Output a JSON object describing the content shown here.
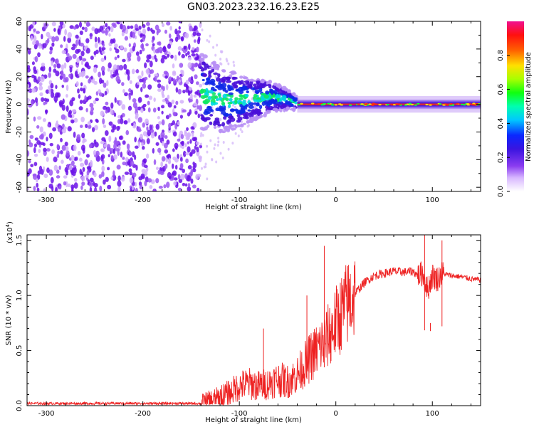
{
  "title": "GN03.2023.232.16.23.E25",
  "colors": {
    "snr_line": "#ee2222",
    "spectro_scatter": "#8a3cf0",
    "spectro_band_core": "#1a33c8",
    "spectro_band_hot": "#ff2a10"
  },
  "chart_data": [
    {
      "type": "heatmap",
      "xlabel": "Height of straight line (km)",
      "ylabel": "Frequency (Hz)",
      "xlim": [
        -320,
        150
      ],
      "ylim": [
        -63,
        60
      ],
      "xticks": [
        -300,
        -200,
        -100,
        0,
        100
      ],
      "yticks": [
        60,
        40,
        20,
        0,
        -20,
        -40,
        -60
      ],
      "x_tick_labels": [
        "-300",
        "-200",
        "-100",
        "0",
        "100"
      ],
      "y_tick_labels": [
        "60",
        "40",
        "20",
        "0",
        "-20",
        "-40",
        "-60"
      ],
      "colorbar": {
        "label": "Normalized spectral amplitude",
        "range": [
          0,
          1
        ],
        "ticks": [
          "0.0",
          "0.2",
          "0.4",
          "0.6",
          "0.8"
        ],
        "colormap": "rainbow (white-purple-blue-cyan-green-yellow-red-magenta)"
      },
      "regions": [
        {
          "x_range": [
            -320,
            -140
          ],
          "freq_range": [
            -63,
            60
          ],
          "amplitude": 0.05,
          "description_type": "broadband noise"
        },
        {
          "x_range": [
            -140,
            -40
          ],
          "freq_range": [
            -20,
            25
          ],
          "amplitude": 0.3,
          "description_type": "narrowing band"
        },
        {
          "x_range": [
            -40,
            150
          ],
          "freq_range": [
            -2,
            2
          ],
          "amplitude": 0.95,
          "description_type": "narrow line near 0 Hz"
        }
      ]
    },
    {
      "type": "line",
      "xlabel": "Height of straight line (km)",
      "ylabel": "SNR (10 * v/v)",
      "y_scale_label": "(x10",
      "y_scale_exp": "4",
      "xlim": [
        -320,
        150
      ],
      "ylim": [
        0,
        1.55
      ],
      "xticks": [
        -300,
        -200,
        -100,
        0,
        100
      ],
      "yticks": [
        0.0,
        0.5,
        1.0,
        1.5
      ],
      "x_tick_labels": [
        "-300",
        "-200",
        "-100",
        "0",
        "100"
      ],
      "y_tick_labels": [
        "0.0",
        "0.5",
        "1.0",
        "1.5"
      ],
      "series": [
        {
          "x": [
            -320,
            -200,
            -140,
            -125,
            -110,
            -100,
            -90,
            -80,
            -70,
            -60,
            -50,
            -40,
            -30,
            -20,
            -10,
            0,
            10,
            20,
            30,
            40,
            50,
            60,
            70,
            80,
            85,
            90,
            95,
            100,
            105,
            110,
            120,
            130,
            140,
            150
          ],
          "values": [
            0.02,
            0.02,
            0.02,
            0.06,
            0.12,
            0.18,
            0.2,
            0.18,
            0.2,
            0.24,
            0.22,
            0.28,
            0.4,
            0.5,
            0.6,
            0.75,
            0.9,
            1.02,
            1.12,
            1.18,
            1.2,
            1.22,
            1.21,
            1.22,
            1.18,
            1.2,
            1.05,
            1.18,
            1.15,
            1.2,
            1.18,
            1.17,
            1.15,
            1.14
          ]
        }
      ],
      "spikes": [
        {
          "x": -75,
          "value": 0.7
        },
        {
          "x": -30,
          "value": 1.0
        },
        {
          "x": -12,
          "value": 1.45
        },
        {
          "x": -5,
          "value": 0.6
        },
        {
          "x": 92,
          "value": 1.55
        },
        {
          "x": 98,
          "value": 0.75
        },
        {
          "x": 110,
          "value": 1.5
        }
      ]
    }
  ]
}
